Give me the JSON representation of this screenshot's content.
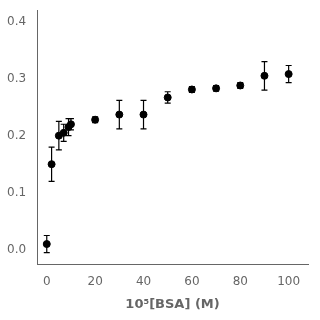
{
  "chart_data": {
    "type": "scatter",
    "xlabel": "10⁵[BSA] (M)",
    "x": [
      0,
      2,
      5,
      7,
      9,
      10,
      20,
      30,
      40,
      50,
      60,
      70,
      80,
      90,
      100
    ],
    "values": [
      0.01,
      0.15,
      0.2,
      0.205,
      0.215,
      0.22,
      0.228,
      0.237,
      0.237,
      0.267,
      0.281,
      0.283,
      0.288,
      0.305,
      0.308
    ],
    "yerr": [
      0.015,
      0.03,
      0.025,
      0.015,
      0.015,
      0.01,
      0.005,
      0.025,
      0.025,
      0.01,
      0.005,
      0.005,
      0.005,
      0.025,
      0.015
    ],
    "xlim": [
      -4,
      108
    ],
    "ylim": [
      -0.025,
      0.42
    ],
    "xticks": [
      0,
      20,
      40,
      60,
      80,
      100
    ],
    "yticks": [
      {
        "value": 0.0,
        "label": "0.0"
      },
      0.1,
      0.2,
      0.3,
      0.4
    ],
    "color": "#000000",
    "marker": "circle",
    "grid": false
  }
}
